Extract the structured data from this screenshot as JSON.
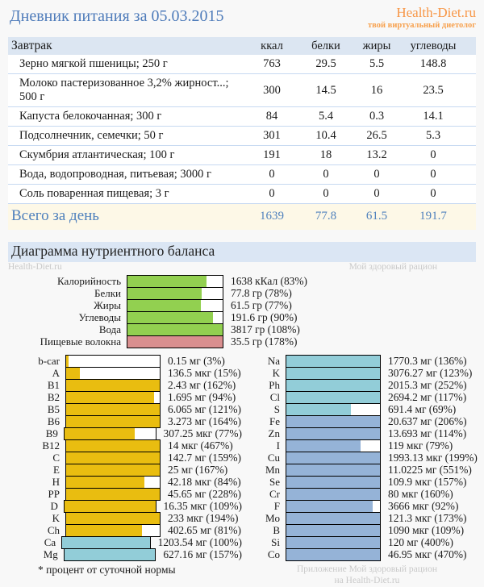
{
  "header": {
    "title": "Дневник питания за 05.03.2015",
    "logo": "Health-Diet.ru",
    "tagline": "твой виртуальный диетолог"
  },
  "meal_table": {
    "meal": "Завтрак",
    "columns": [
      "ккал",
      "белки",
      "жиры",
      "углеводы"
    ],
    "rows": [
      [
        "Зерно мягкой пшеницы; 250 г",
        "763",
        "29.5",
        "5.5",
        "148.8"
      ],
      [
        "Молоко пастеризованное 3,2% жирност...; 500 г",
        "300",
        "14.5",
        "16",
        "23.5"
      ],
      [
        "Капуста белокочанная; 300 г",
        "84",
        "5.4",
        "0.3",
        "14.1"
      ],
      [
        "Подсолнечник, семечки; 50 г",
        "301",
        "10.4",
        "26.5",
        "5.3"
      ],
      [
        "Скумбрия атлантическая; 100 г",
        "191",
        "18",
        "13.2",
        "0"
      ],
      [
        "Вода, водопроводная, питьевая; 3000 г",
        "0",
        "0",
        "0",
        "0"
      ],
      [
        "Соль поваренная пищевая; 3 г",
        "0",
        "0",
        "0",
        "0"
      ]
    ],
    "total": [
      "Всего за день",
      "1639",
      "77.8",
      "61.5",
      "191.7"
    ]
  },
  "diagram": {
    "title": "Диаграмма нутриентного баланса",
    "watermark_left": "Health-Diet.ru",
    "watermark_right": "Мой здоровый рацион",
    "footnote": "* процент от суточной нормы",
    "credit_line1": "Приложение Мой здоровый рацион",
    "credit_line2": "на Health-Diet.ru"
  },
  "colors": {
    "green": "#92d050",
    "pink": "#d98f8f",
    "yellow": "#e9bd10",
    "cyan": "#92cdd8",
    "periwinkle": "#95b3d7",
    "accent_blue": "#4f7cba",
    "orange": "#f79646",
    "table_header_bg": "#dce6f2",
    "total_bg": "#fdf8e7",
    "section_bg": "#dbe6f4",
    "row_border": "#c6d9f1",
    "watermark": "#c9c9c9"
  },
  "chart_data": [
    {
      "type": "bar",
      "name": "macronutrient-balance",
      "orientation": "horizontal",
      "xlim": [
        0,
        100
      ],
      "note": "fill = min(percent, 100)",
      "rows": [
        {
          "label": "Калорийность",
          "display": "1638 кКал (83%)",
          "value": 1638,
          "unit": "кКал",
          "percent": 83,
          "color": "green"
        },
        {
          "label": "Белки",
          "display": "77.8 гр (78%)",
          "value": 77.8,
          "unit": "гр",
          "percent": 78,
          "color": "green"
        },
        {
          "label": "Жиры",
          "display": "61.5 гр (77%)",
          "value": 61.5,
          "unit": "гр",
          "percent": 77,
          "color": "green"
        },
        {
          "label": "Углеводы",
          "display": "191.6 гр (90%)",
          "value": 191.6,
          "unit": "гр",
          "percent": 90,
          "color": "green"
        },
        {
          "label": "Вода",
          "display": "3817 гр (108%)",
          "value": 3817,
          "unit": "гр",
          "percent": 108,
          "color": "green"
        },
        {
          "label": "Пищевые волокна",
          "display": "35.5 гр (178%)",
          "value": 35.5,
          "unit": "гр",
          "percent": 178,
          "color": "pink"
        }
      ]
    },
    {
      "type": "bar",
      "name": "vitamins",
      "orientation": "horizontal",
      "xlim": [
        0,
        100
      ],
      "rows": [
        {
          "label": "b-car",
          "display": "0.15 мг (3%)",
          "value": 0.15,
          "unit": "мг",
          "percent": 3,
          "color": "yellow"
        },
        {
          "label": "A",
          "display": "136.5 мкг (15%)",
          "value": 136.5,
          "unit": "мкг",
          "percent": 15,
          "color": "yellow"
        },
        {
          "label": "B1",
          "display": "2.43 мг (162%)",
          "value": 2.43,
          "unit": "мг",
          "percent": 162,
          "color": "yellow"
        },
        {
          "label": "B2",
          "display": "1.695 мг (94%)",
          "value": 1.695,
          "unit": "мг",
          "percent": 94,
          "color": "yellow"
        },
        {
          "label": "B5",
          "display": "6.065 мг (121%)",
          "value": 6.065,
          "unit": "мг",
          "percent": 121,
          "color": "yellow"
        },
        {
          "label": "B6",
          "display": "3.273 мг (164%)",
          "value": 3.273,
          "unit": "мг",
          "percent": 164,
          "color": "yellow"
        },
        {
          "label": "B9",
          "display": "307.25 мкг (77%)",
          "value": 307.25,
          "unit": "мкг",
          "percent": 77,
          "color": "yellow"
        },
        {
          "label": "B12",
          "display": "14 мкг (467%)",
          "value": 14,
          "unit": "мкг",
          "percent": 467,
          "color": "yellow"
        },
        {
          "label": "C",
          "display": "142.7 мг (159%)",
          "value": 142.7,
          "unit": "мг",
          "percent": 159,
          "color": "yellow"
        },
        {
          "label": "E",
          "display": "25 мг (167%)",
          "value": 25,
          "unit": "мг",
          "percent": 167,
          "color": "yellow"
        },
        {
          "label": "H",
          "display": "42.18 мкг (84%)",
          "value": 42.18,
          "unit": "мкг",
          "percent": 84,
          "color": "yellow"
        },
        {
          "label": "PP",
          "display": "45.65 мг (228%)",
          "value": 45.65,
          "unit": "мг",
          "percent": 228,
          "color": "yellow"
        },
        {
          "label": "D",
          "display": "16.35 мкг (109%)",
          "value": 16.35,
          "unit": "мкг",
          "percent": 109,
          "color": "yellow"
        },
        {
          "label": "K",
          "display": "233 мкг (194%)",
          "value": 233,
          "unit": "мкг",
          "percent": 194,
          "color": "yellow"
        },
        {
          "label": "Ch",
          "display": "402.65 мг (81%)",
          "value": 402.65,
          "unit": "мг",
          "percent": 81,
          "color": "yellow"
        },
        {
          "label": "Ca",
          "display": "1203.54 мг (100%)",
          "value": 1203.54,
          "unit": "мг",
          "percent": 100,
          "color": "cyan"
        },
        {
          "label": "Mg",
          "display": "627.16 мг (157%)",
          "value": 627.16,
          "unit": "мг",
          "percent": 157,
          "color": "cyan"
        }
      ]
    },
    {
      "type": "bar",
      "name": "minerals",
      "orientation": "horizontal",
      "xlim": [
        0,
        100
      ],
      "rows": [
        {
          "label": "Na",
          "display": "1770.3 мг (136%)",
          "value": 1770.3,
          "unit": "мг",
          "percent": 136,
          "color": "cyan"
        },
        {
          "label": "K",
          "display": "3076.27 мг (123%)",
          "value": 3076.27,
          "unit": "мг",
          "percent": 123,
          "color": "cyan"
        },
        {
          "label": "Ph",
          "display": "2015.3 мг (252%)",
          "value": 2015.3,
          "unit": "мг",
          "percent": 252,
          "color": "cyan"
        },
        {
          "label": "Cl",
          "display": "2694.2 мг (117%)",
          "value": 2694.2,
          "unit": "мг",
          "percent": 117,
          "color": "cyan"
        },
        {
          "label": "S",
          "display": "691.4 мг (69%)",
          "value": 691.4,
          "unit": "мг",
          "percent": 69,
          "color": "cyan"
        },
        {
          "label": "Fe",
          "display": "20.637 мг (206%)",
          "value": 20.637,
          "unit": "мг",
          "percent": 206,
          "color": "periwinkle"
        },
        {
          "label": "Zn",
          "display": "13.693 мг (114%)",
          "value": 13.693,
          "unit": "мг",
          "percent": 114,
          "color": "periwinkle"
        },
        {
          "label": "I",
          "display": "119 мкг (79%)",
          "value": 119,
          "unit": "мкг",
          "percent": 79,
          "color": "periwinkle"
        },
        {
          "label": "Cu",
          "display": "1993.13 мкг (199%)",
          "value": 1993.13,
          "unit": "мкг",
          "percent": 199,
          "color": "periwinkle"
        },
        {
          "label": "Mn",
          "display": "11.0225 мг (551%)",
          "value": 11.0225,
          "unit": "мг",
          "percent": 551,
          "color": "periwinkle"
        },
        {
          "label": "Se",
          "display": "109.9 мкг (157%)",
          "value": 109.9,
          "unit": "мкг",
          "percent": 157,
          "color": "periwinkle"
        },
        {
          "label": "Cr",
          "display": "80 мкг (160%)",
          "value": 80,
          "unit": "мкг",
          "percent": 160,
          "color": "periwinkle"
        },
        {
          "label": "F",
          "display": "3666 мкг (92%)",
          "value": 3666,
          "unit": "мкг",
          "percent": 92,
          "color": "periwinkle"
        },
        {
          "label": "Mo",
          "display": "121.3 мкг (173%)",
          "value": 121.3,
          "unit": "мкг",
          "percent": 173,
          "color": "periwinkle"
        },
        {
          "label": "B",
          "display": "1090 мкг (109%)",
          "value": 1090,
          "unit": "мкг",
          "percent": 109,
          "color": "periwinkle"
        },
        {
          "label": "Si",
          "display": "120 мг (400%)",
          "value": 120,
          "unit": "мг",
          "percent": 400,
          "color": "periwinkle"
        },
        {
          "label": "Co",
          "display": "46.95 мкг (470%)",
          "value": 46.95,
          "unit": "мкг",
          "percent": 470,
          "color": "periwinkle"
        }
      ]
    }
  ]
}
